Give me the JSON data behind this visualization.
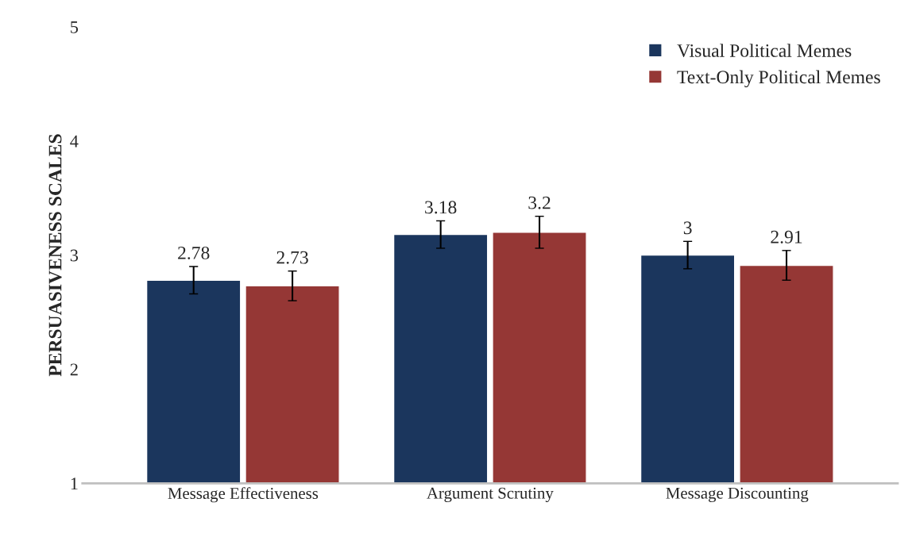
{
  "chart_data": {
    "type": "bar",
    "ylabel": "PERSUASIVENESS SCALES",
    "categories": [
      "Message Effectiveness",
      "Argument Scrutiny",
      "Message Discounting"
    ],
    "series": [
      {
        "name": "Visual Political Memes",
        "color": "#1b365d",
        "values": [
          2.78,
          3.18,
          3
        ],
        "errors": [
          0.12,
          0.12,
          0.12
        ]
      },
      {
        "name": "Text-Only Political Memes",
        "color": "#953735",
        "values": [
          2.73,
          3.2,
          2.91
        ],
        "errors": [
          0.13,
          0.14,
          0.13
        ]
      }
    ],
    "ylim": [
      1,
      5
    ],
    "yticks": [
      1,
      2,
      3,
      4,
      5
    ],
    "data_labels": true,
    "grid": false,
    "legend": "top right"
  }
}
